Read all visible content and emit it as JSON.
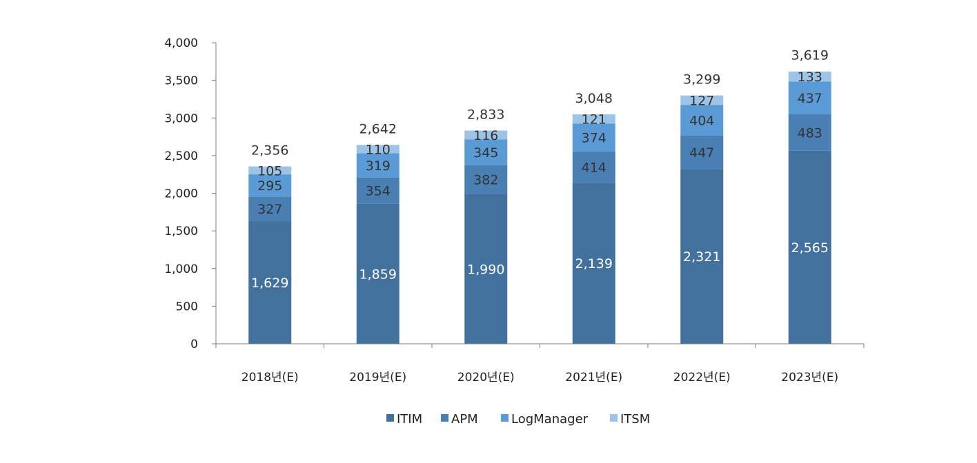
{
  "chart_data": {
    "type": "bar",
    "stacked": true,
    "categories": [
      "2018년(E)",
      "2019년(E)",
      "2020년(E)",
      "2021년(E)",
      "2022년(E)",
      "2023년(E)"
    ],
    "series": [
      {
        "name": "ITIM",
        "color": "#41719c",
        "values": [
          1629,
          1859,
          1990,
          2139,
          2321,
          2565
        ],
        "labels": [
          "1,629",
          "1,859",
          "1,990",
          "2,139",
          "2,321",
          "2,565"
        ]
      },
      {
        "name": "APM",
        "color": "#4a7fb4",
        "values": [
          327,
          354,
          382,
          414,
          447,
          483
        ],
        "labels": [
          "327",
          "354",
          "382",
          "414",
          "447",
          "483"
        ]
      },
      {
        "name": "LogManager",
        "color": "#5b9bd5",
        "values": [
          295,
          319,
          345,
          374,
          404,
          437
        ],
        "labels": [
          "295",
          "319",
          "345",
          "374",
          "404",
          "437"
        ]
      },
      {
        "name": "ITSM",
        "color": "#9dc3e6",
        "values": [
          105,
          110,
          116,
          121,
          127,
          133
        ],
        "labels": [
          "105",
          "110",
          "116",
          "121",
          "127",
          "133"
        ]
      }
    ],
    "totals": [
      "2,356",
      "2,642",
      "2,833",
      "3,048",
      "3,299",
      "3,619"
    ],
    "ylim": [
      0,
      4000
    ],
    "yticks": [
      0,
      500,
      1000,
      1500,
      2000,
      2500,
      3000,
      3500,
      4000
    ],
    "ytick_labels": [
      "0",
      "500",
      "1,000",
      "1,500",
      "2,000",
      "2,500",
      "3,000",
      "3,500",
      "4,000"
    ],
    "grid": false,
    "legend_position": "bottom"
  }
}
